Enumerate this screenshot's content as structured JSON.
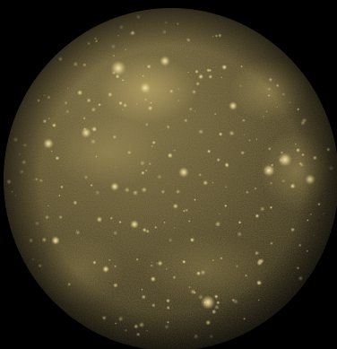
{
  "image": {
    "subject": "moon-disk",
    "background_color": "#000000",
    "palette": {
      "surface_dark": "#2a2415",
      "surface_mid": "#5a4e2c",
      "surface_light": "#8a7a48",
      "crater_bright": "#e6d9a3",
      "crater_glow": "#cdbb7a"
    }
  }
}
